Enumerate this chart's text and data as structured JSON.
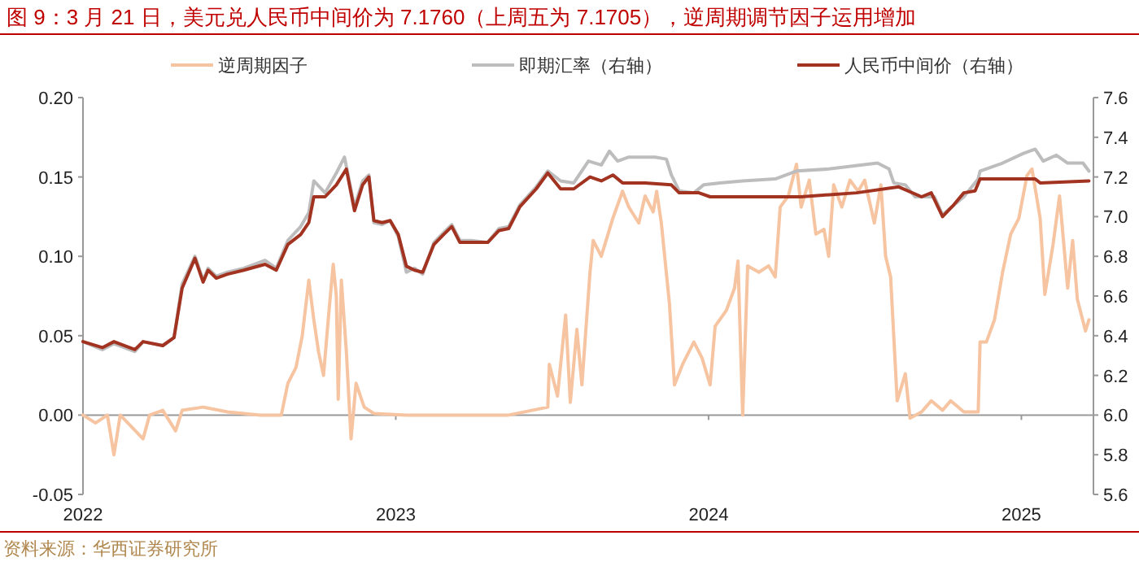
{
  "chart_data": {
    "type": "line",
    "title": "图 9：3 月 21 日，美元兑人民币中间价为 7.1760（上周五为 7.1705），逆周期调节因子运用增加",
    "legend": "top",
    "marker": "none",
    "line_style": "solid",
    "xlim": [
      2022,
      2025.22
    ],
    "xticks": [
      2022,
      2023,
      2024,
      2025
    ],
    "ylim": [
      -0.05,
      0.2
    ],
    "yticks": [
      -0.05,
      {
        "value": 0,
        "label": "0.00"
      },
      0.05,
      {
        "value": 0.1,
        "label": "0.10"
      },
      0.15,
      {
        "value": 0.2,
        "label": "0.20"
      }
    ],
    "y2lim": [
      5.6,
      7.6
    ],
    "y2ticks": [
      5.6,
      5.8,
      {
        "value": 6,
        "label": "6.0"
      },
      6.2,
      6.4,
      6.6,
      6.8,
      {
        "value": 7,
        "label": "7.0"
      },
      7.2,
      7.4,
      7.6
    ],
    "series": [
      {
        "name": "逆周期因子",
        "color": "#f6c4a0",
        "x": [
          2022.0,
          2022.04,
          2022.078,
          2022.099,
          2022.119,
          2022.192,
          2022.213,
          2022.255,
          2022.296,
          2022.317,
          2022.384,
          2022.462,
          2022.566,
          2022.634,
          2022.655,
          2022.681,
          2022.701,
          2022.722,
          2022.738,
          2022.753,
          2022.769,
          2022.784,
          2022.8,
          2022.81,
          2022.816,
          2022.826,
          2022.842,
          2022.857,
          2022.873,
          2022.899,
          2022.93,
          2023.034,
          2023.2,
          2023.361,
          2023.486,
          2023.491,
          2023.517,
          2023.543,
          2023.558,
          2023.579,
          2023.595,
          2023.621,
          2023.631,
          2023.657,
          2023.694,
          2023.725,
          2023.745,
          2023.777,
          2023.797,
          2023.823,
          2023.834,
          2023.849,
          2023.875,
          2023.891,
          2023.917,
          2023.953,
          2023.979,
          2024.005,
          2024.021,
          2024.057,
          2024.083,
          2024.094,
          2024.109,
          2024.125,
          2024.161,
          2024.192,
          2024.213,
          2024.229,
          2024.255,
          2024.281,
          2024.296,
          2024.322,
          2024.343,
          2024.369,
          2024.384,
          2024.4,
          2024.426,
          2024.452,
          2024.478,
          2024.499,
          2024.53,
          2024.551,
          2024.566,
          2024.582,
          2024.603,
          2024.629,
          2024.644,
          2024.681,
          2024.712,
          2024.748,
          2024.774,
          2024.816,
          2024.862,
          2024.868,
          2024.888,
          2024.914,
          2024.94,
          2024.966,
          2024.992,
          2025.018,
          2025.034,
          2025.06,
          2025.075,
          2025.101,
          2025.122,
          2025.148,
          2025.164,
          2025.179,
          2025.205,
          2025.216
        ],
        "values": [
          0,
          -0.005,
          0,
          -0.025,
          0,
          -0.015,
          0,
          0.003,
          -0.01,
          0.003,
          0.005,
          0.002,
          0,
          0,
          0.02,
          0.03,
          0.05,
          0.085,
          0.06,
          0.04,
          0.025,
          0.06,
          0.095,
          0.075,
          0.01,
          0.085,
          0.04,
          -0.015,
          0.02,
          0.005,
          0.001,
          0,
          0,
          0,
          0.005,
          0.032,
          0.012,
          0.063,
          0.008,
          0.054,
          0.019,
          0.09,
          0.11,
          0.1,
          0.124,
          0.141,
          0.131,
          0.121,
          0.138,
          0.128,
          0.141,
          0.121,
          0.07,
          0.019,
          0.032,
          0.046,
          0.036,
          0.019,
          0.056,
          0.066,
          0.08,
          0.097,
          0,
          0.094,
          0.09,
          0.094,
          0.087,
          0.131,
          0.138,
          0.158,
          0.131,
          0.148,
          0.114,
          0.117,
          0.1,
          0.145,
          0.131,
          0.148,
          0.141,
          0.148,
          0.121,
          0.145,
          0.1,
          0.087,
          0.009,
          0.026,
          -0.002,
          0.002,
          0.009,
          0.003,
          0.009,
          0.002,
          0.002,
          0.046,
          0.046,
          0.06,
          0.09,
          0.114,
          0.124,
          0.151,
          0.155,
          0.124,
          0.076,
          0.107,
          0.138,
          0.08,
          0.11,
          0.073,
          0.053,
          0.06
        ]
      },
      {
        "name": "即期汇率（右轴）",
        "color": "#bdbdbd",
        "axis": "y2",
        "x": [
          2022.0,
          2022.062,
          2022.099,
          2022.166,
          2022.192,
          2022.255,
          2022.291,
          2022.317,
          2022.358,
          2022.384,
          2022.4,
          2022.426,
          2022.462,
          2022.514,
          2022.582,
          2022.618,
          2022.655,
          2022.696,
          2022.722,
          2022.738,
          2022.774,
          2022.81,
          2022.836,
          2022.868,
          2022.894,
          2022.914,
          2022.93,
          2022.956,
          2022.982,
          2023.008,
          2023.034,
          2023.06,
          2023.086,
          2023.122,
          2023.153,
          2023.179,
          2023.205,
          2023.242,
          2023.294,
          2023.33,
          2023.361,
          2023.397,
          2023.449,
          2023.486,
          2023.527,
          2023.569,
          2023.616,
          2023.657,
          2023.683,
          2023.709,
          2023.745,
          2023.797,
          2023.829,
          2023.865,
          2023.881,
          2023.906,
          2023.953,
          2023.984,
          2024.036,
          2024.109,
          2024.213,
          2024.281,
          2024.384,
          2024.54,
          2024.577,
          2024.592,
          2024.629,
          2024.66,
          2024.722,
          2024.748,
          2024.816,
          2024.862,
          2024.868,
          2024.94,
          2025.008,
          2025.044,
          2025.07,
          2025.112,
          2025.148,
          2025.197,
          2025.216
        ],
        "values": [
          6.37,
          6.33,
          6.36,
          6.32,
          6.37,
          6.35,
          6.39,
          6.66,
          6.8,
          6.68,
          6.74,
          6.7,
          6.72,
          6.74,
          6.78,
          6.74,
          6.88,
          6.95,
          7.02,
          7.18,
          7.12,
          7.22,
          7.3,
          7.05,
          7.18,
          7.21,
          6.97,
          6.96,
          6.98,
          6.9,
          6.72,
          6.74,
          6.71,
          6.87,
          6.92,
          6.96,
          6.88,
          6.88,
          6.87,
          6.94,
          6.95,
          7.06,
          7.15,
          7.23,
          7.18,
          7.17,
          7.28,
          7.26,
          7.33,
          7.28,
          7.3,
          7.3,
          7.3,
          7.29,
          7.21,
          7.13,
          7.12,
          7.16,
          7.17,
          7.18,
          7.19,
          7.23,
          7.24,
          7.27,
          7.24,
          7.17,
          7.16,
          7.1,
          7.1,
          7.01,
          7.1,
          7.19,
          7.23,
          7.27,
          7.32,
          7.34,
          7.28,
          7.31,
          7.27,
          7.27,
          7.23
        ]
      },
      {
        "name": "人民币中间价（右轴）",
        "color": "#a23321",
        "axis": "y2",
        "x": [
          2022.0,
          2022.062,
          2022.099,
          2022.166,
          2022.192,
          2022.255,
          2022.291,
          2022.317,
          2022.358,
          2022.384,
          2022.4,
          2022.426,
          2022.462,
          2022.514,
          2022.582,
          2022.618,
          2022.655,
          2022.696,
          2022.722,
          2022.738,
          2022.774,
          2022.81,
          2022.842,
          2022.868,
          2022.894,
          2022.914,
          2022.93,
          2022.956,
          2022.982,
          2023.008,
          2023.034,
          2023.06,
          2023.086,
          2023.122,
          2023.153,
          2023.179,
          2023.205,
          2023.242,
          2023.294,
          2023.33,
          2023.361,
          2023.397,
          2023.449,
          2023.486,
          2023.527,
          2023.569,
          2023.621,
          2023.657,
          2023.694,
          2023.725,
          2023.797,
          2023.881,
          2023.906,
          2023.969,
          2024.005,
          2024.109,
          2024.229,
          2024.296,
          2024.473,
          2024.608,
          2024.681,
          2024.712,
          2024.748,
          2024.784,
          2024.816,
          2024.852,
          2024.868,
          2025.044,
          2025.06,
          2025.216
        ],
        "values": [
          6.37,
          6.34,
          6.37,
          6.33,
          6.37,
          6.35,
          6.39,
          6.64,
          6.79,
          6.67,
          6.73,
          6.69,
          6.71,
          6.73,
          6.76,
          6.73,
          6.86,
          6.91,
          6.97,
          7.1,
          7.1,
          7.16,
          7.24,
          7.03,
          7.16,
          7.2,
          6.98,
          6.97,
          6.98,
          6.91,
          6.75,
          6.73,
          6.72,
          6.86,
          6.91,
          6.95,
          6.87,
          6.87,
          6.87,
          6.93,
          6.94,
          7.05,
          7.14,
          7.22,
          7.14,
          7.14,
          7.2,
          7.18,
          7.21,
          7.17,
          7.17,
          7.16,
          7.12,
          7.12,
          7.1,
          7.1,
          7.1,
          7.1,
          7.12,
          7.15,
          7.1,
          7.12,
          7.0,
          7.06,
          7.12,
          7.13,
          7.19,
          7.19,
          7.17,
          7.18
        ]
      }
    ],
    "annotations": [
      "资料来源：华西证券研究所"
    ]
  }
}
